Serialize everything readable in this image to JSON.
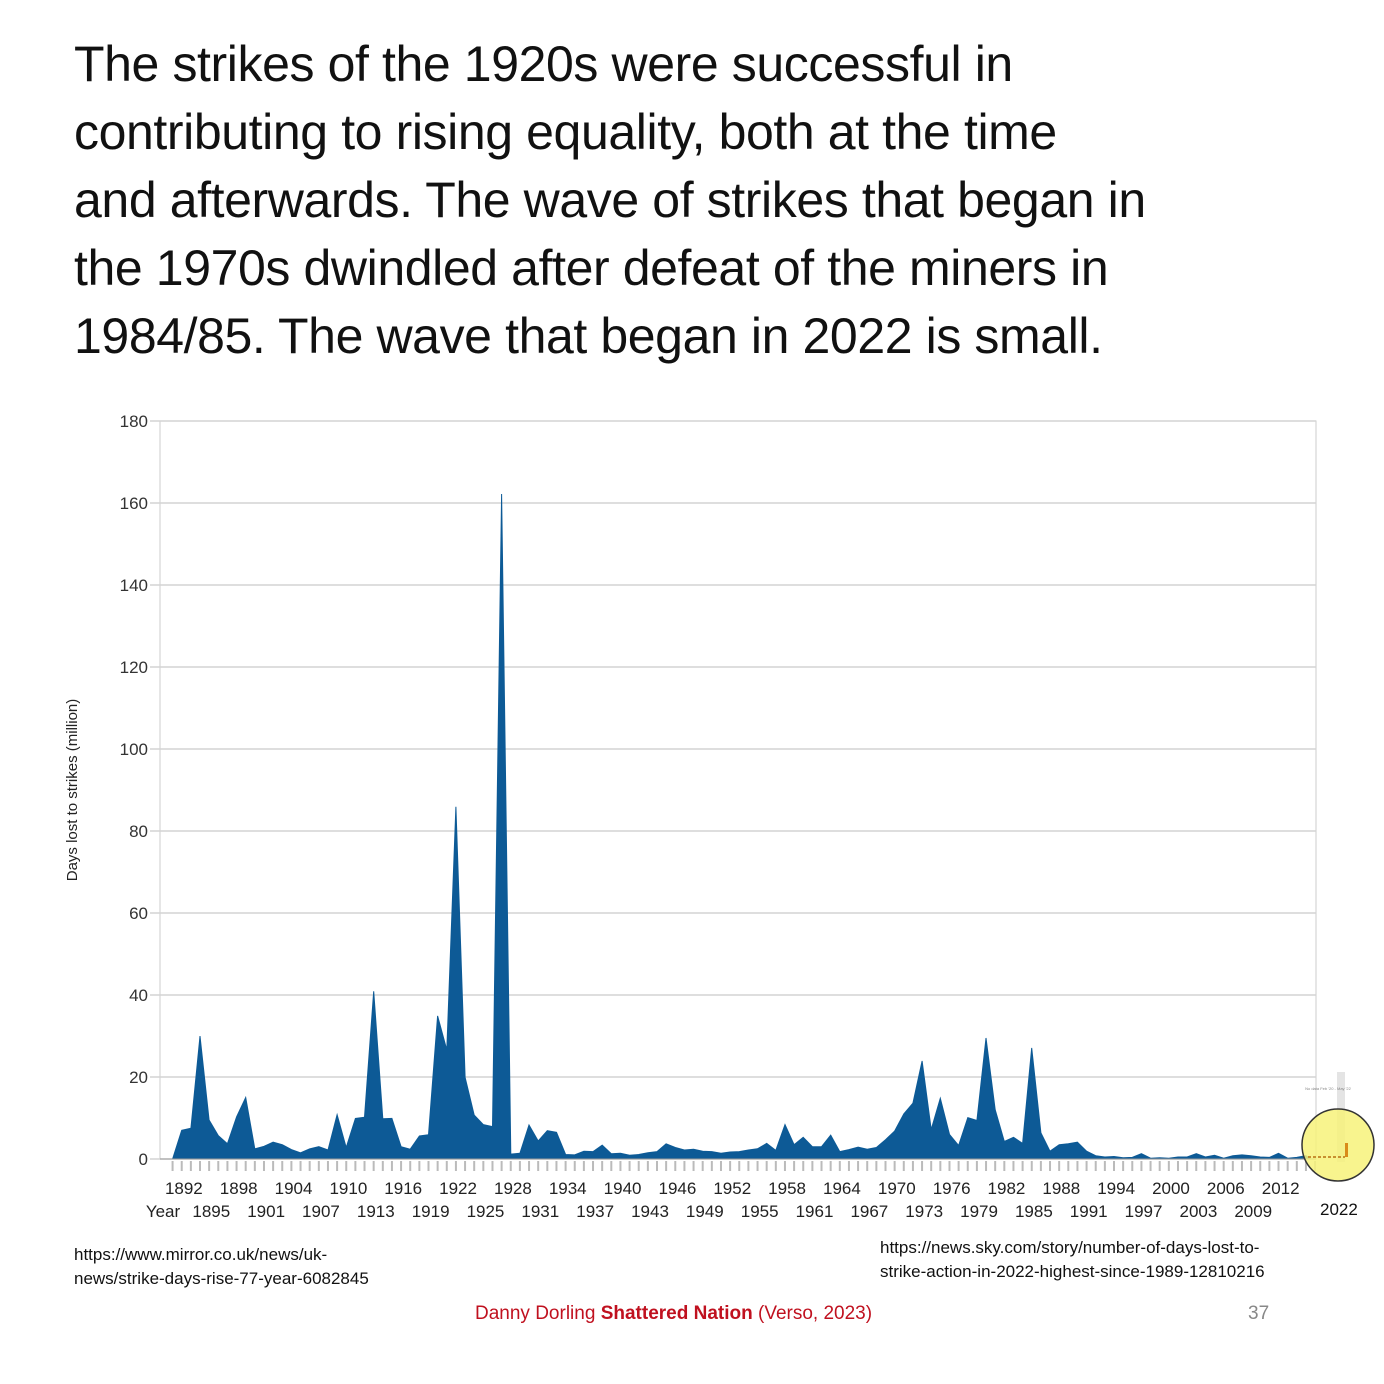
{
  "slide": {
    "title_lines": [
      "The strikes of the 1920s were successful in",
      "contributing to rising equality, both at the time",
      "and afterwards. The wave of strikes that began in",
      "the 1970s dwindled after defeat of the miners in",
      "1984/85. The wave that began in 2022 is small."
    ],
    "source_left": [
      "https://www.mirror.co.uk/news/uk-",
      "news/strike-days-rise-77-year-6082845"
    ],
    "source_right": [
      "https://news.sky.com/story/number-of-days-lost-to-",
      "strike-action-in-2022-highest-since-1989-12810216"
    ],
    "footer": {
      "author": "Danny Dorling",
      "book": "Shattered Nation",
      "publisher": "(Verso, 2023)"
    },
    "page_number": "37",
    "inset_label": "2022",
    "inset_note": "No data Feb '20 - May '22",
    "colors": {
      "area": "#0d5a96",
      "highlight": "#f7f27a",
      "footer": "#c0111f",
      "inset_bar": "#d98b1a"
    }
  },
  "chart_data": {
    "type": "area",
    "ylabel": "Days lost to strikes (million)",
    "xlabel": "Year",
    "ylim": [
      0,
      180
    ],
    "yticks": [
      0,
      20,
      40,
      60,
      80,
      100,
      120,
      140,
      160,
      180
    ],
    "xticks_upper": [
      1892,
      1898,
      1904,
      1910,
      1916,
      1922,
      1928,
      1934,
      1940,
      1946,
      1952,
      1958,
      1964,
      1970,
      1976,
      1982,
      1988,
      1994,
      2000,
      2006,
      2012
    ],
    "xticks_lower": [
      1895,
      1901,
      1907,
      1913,
      1919,
      1925,
      1931,
      1937,
      1943,
      1949,
      1955,
      1961,
      1967,
      1973,
      1979,
      1985,
      1991,
      1997,
      2003,
      2009
    ],
    "grid": true,
    "x": [
      1891,
      1892,
      1893,
      1894,
      1895,
      1896,
      1897,
      1898,
      1899,
      1900,
      1901,
      1902,
      1903,
      1904,
      1905,
      1906,
      1907,
      1908,
      1909,
      1910,
      1911,
      1912,
      1913,
      1914,
      1915,
      1916,
      1917,
      1918,
      1919,
      1920,
      1921,
      1922,
      1923,
      1924,
      1925,
      1926,
      1927,
      1928,
      1929,
      1930,
      1931,
      1932,
      1933,
      1934,
      1935,
      1936,
      1937,
      1938,
      1939,
      1940,
      1941,
      1942,
      1943,
      1944,
      1945,
      1946,
      1947,
      1948,
      1949,
      1950,
      1951,
      1952,
      1953,
      1954,
      1955,
      1956,
      1957,
      1958,
      1959,
      1960,
      1961,
      1962,
      1963,
      1964,
      1965,
      1966,
      1967,
      1968,
      1969,
      1970,
      1971,
      1972,
      1973,
      1974,
      1975,
      1976,
      1977,
      1978,
      1979,
      1980,
      1981,
      1982,
      1983,
      1984,
      1985,
      1986,
      1987,
      1988,
      1989,
      1990,
      1991,
      1992,
      1993,
      1994,
      1995,
      1996,
      1997,
      1998,
      1999,
      2000,
      2001,
      2002,
      2003,
      2004,
      2005,
      2006,
      2007,
      2008,
      2009,
      2010,
      2011,
      2012,
      2013,
      2014
    ],
    "values": [
      7,
      7.5,
      30,
      9.5,
      5.7,
      3.7,
      10.3,
      15,
      2.5,
      3.1,
      4.1,
      3.5,
      2.3,
      1.5,
      2.5,
      3,
      2.2,
      10.8,
      2.8,
      9.9,
      10.2,
      40.9,
      9.8,
      9.9,
      3,
      2.4,
      5.6,
      5.9,
      34.9,
      26.6,
      85.9,
      19.9,
      10.7,
      8.4,
      7.9,
      162.2,
      1.2,
      1.4,
      8.3,
      4.4,
      6.9,
      6.5,
      1.1,
      1,
      1.9,
      1.8,
      3.4,
      1.3,
      1.4,
      0.9,
      1.1,
      1.5,
      1.8,
      3.7,
      2.8,
      2.2,
      2.4,
      1.9,
      1.8,
      1.4,
      1.7,
      1.8,
      2.2,
      2.5,
      3.8,
      2.1,
      8.4,
      3.5,
      5.3,
      3,
      3,
      5.8,
      1.8,
      2.3,
      2.9,
      2.4,
      2.8,
      4.7,
      6.8,
      11,
      13.6,
      23.9,
      7.2,
      14.8,
      6,
      3.3,
      10.1,
      9.4,
      29.5,
      12,
      4.3,
      5.3,
      3.8,
      27.1,
      6.4,
      1.9,
      3.5,
      3.7,
      4.1,
      1.9,
      0.8,
      0.5,
      0.6,
      0.3,
      0.4,
      1.3,
      0.2,
      0.3,
      0.2,
      0.5,
      0.5,
      1.3,
      0.5,
      0.9,
      0.2,
      0.8,
      1,
      0.8,
      0.5,
      0.4,
      1.4,
      0.2,
      0.4,
      0.8
    ]
  }
}
